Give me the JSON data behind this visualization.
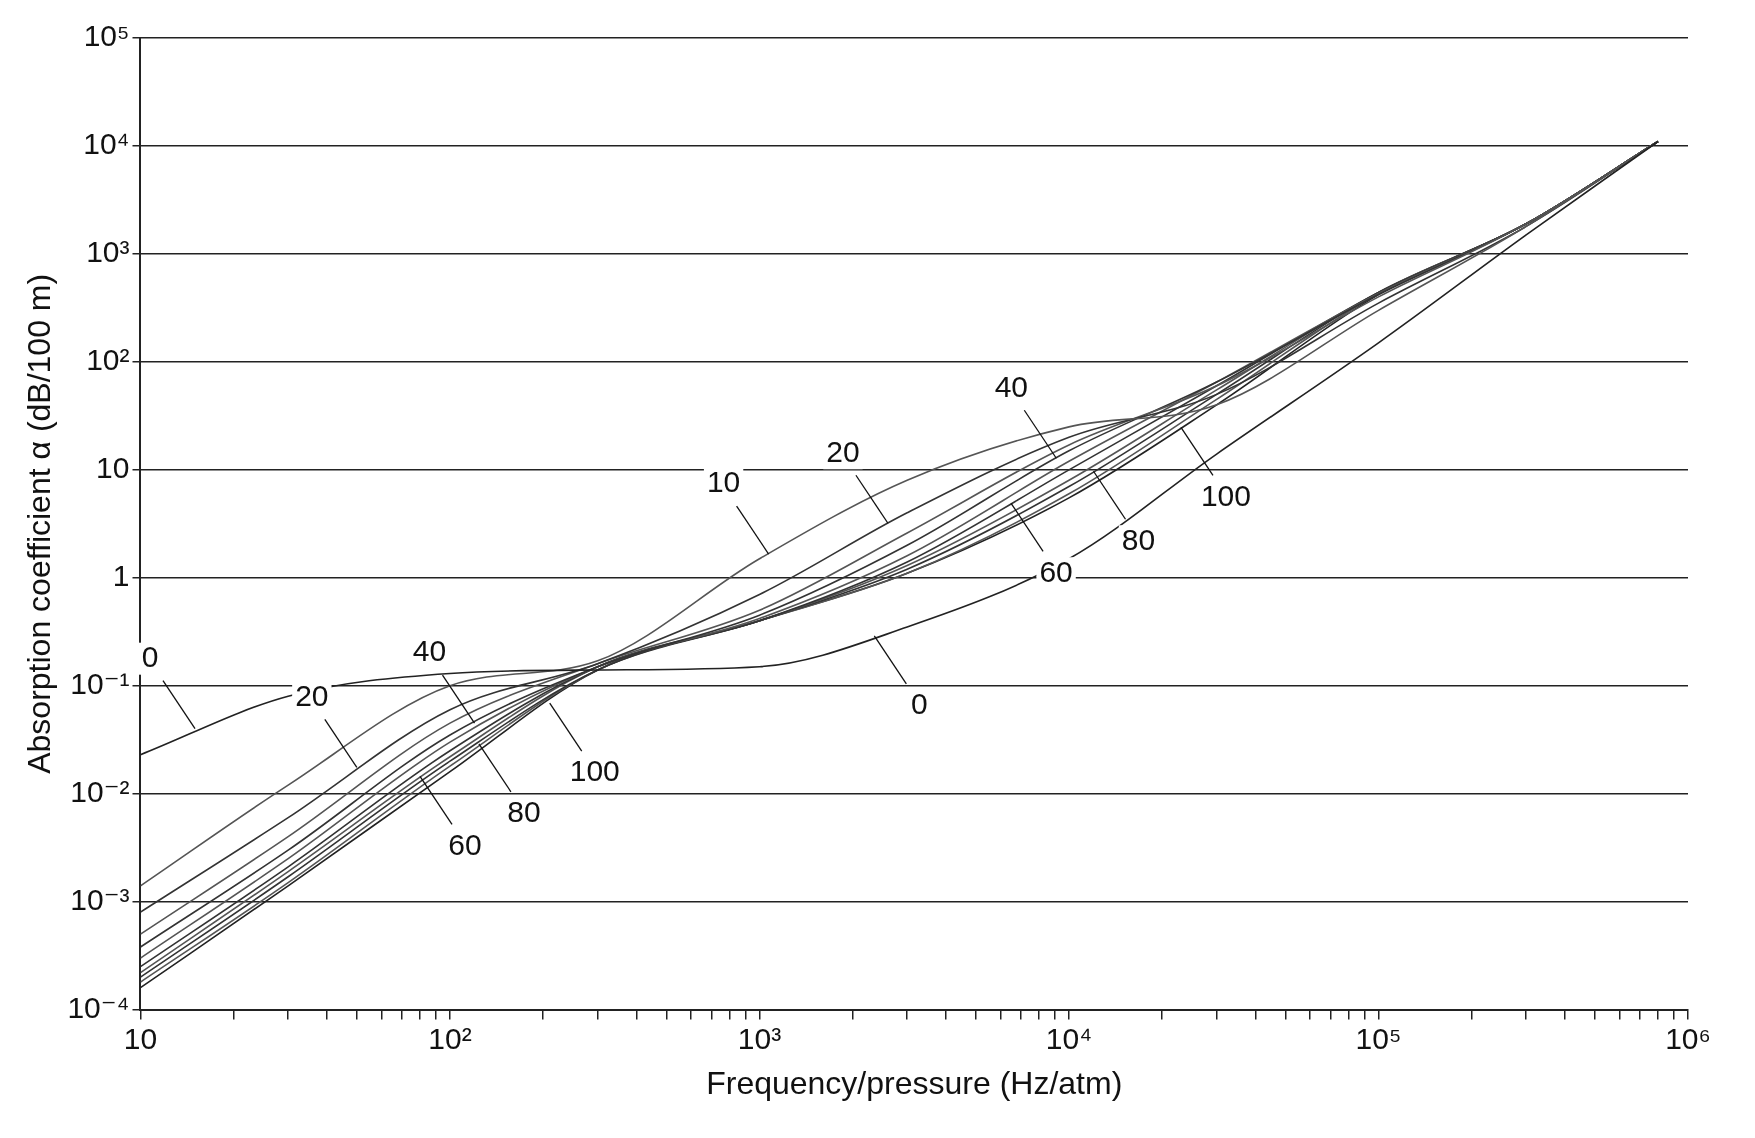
{
  "chart_data": {
    "type": "line",
    "xlabel": "Frequency/pressure (Hz/atm)",
    "ylabel": "Absorption coefficient α (dB/100 m)",
    "log": "xy",
    "grid": "y",
    "legend": false,
    "marker": "none",
    "line_style": "solid",
    "xlim": [
      10,
      1000000
    ],
    "ylim": [
      0.0001,
      100000
    ],
    "xticks": [
      10,
      {
        "value": 20,
        "label": null
      },
      {
        "value": 30,
        "label": null
      },
      {
        "value": 40,
        "label": null
      },
      {
        "value": 50,
        "label": null
      },
      {
        "value": 60,
        "label": null
      },
      {
        "value": 70,
        "label": null
      },
      {
        "value": 80,
        "label": null
      },
      {
        "value": 90,
        "label": null
      },
      {
        "value": 100,
        "label": "10²"
      },
      {
        "value": 200,
        "label": null
      },
      {
        "value": 300,
        "label": null
      },
      {
        "value": 400,
        "label": null
      },
      {
        "value": 500,
        "label": null
      },
      {
        "value": 600,
        "label": null
      },
      {
        "value": 700,
        "label": null
      },
      {
        "value": 800,
        "label": null
      },
      {
        "value": 900,
        "label": null
      },
      {
        "value": 1000,
        "label": "10³"
      },
      {
        "value": 2000,
        "label": null
      },
      {
        "value": 3000,
        "label": null
      },
      {
        "value": 4000,
        "label": null
      },
      {
        "value": 5000,
        "label": null
      },
      {
        "value": 6000,
        "label": null
      },
      {
        "value": 7000,
        "label": null
      },
      {
        "value": 8000,
        "label": null
      },
      {
        "value": 9000,
        "label": null
      },
      {
        "value": 10000,
        "label": "10⁴"
      },
      {
        "value": 20000,
        "label": null
      },
      {
        "value": 30000,
        "label": null
      },
      {
        "value": 40000,
        "label": null
      },
      {
        "value": 50000,
        "label": null
      },
      {
        "value": 60000,
        "label": null
      },
      {
        "value": 70000,
        "label": null
      },
      {
        "value": 80000,
        "label": null
      },
      {
        "value": 90000,
        "label": null
      },
      {
        "value": 100000,
        "label": "10⁵"
      },
      {
        "value": 200000,
        "label": null
      },
      {
        "value": 300000,
        "label": null
      },
      {
        "value": 400000,
        "label": null
      },
      {
        "value": 500000,
        "label": null
      },
      {
        "value": 600000,
        "label": null
      },
      {
        "value": 700000,
        "label": null
      },
      {
        "value": 800000,
        "label": null
      },
      {
        "value": 900000,
        "label": null
      },
      {
        "value": 1000000,
        "label": "10⁶"
      }
    ],
    "yticks": [
      {
        "value": 0.0001,
        "label": "10⁻⁴"
      },
      {
        "value": 0.001,
        "label": "10⁻³"
      },
      {
        "value": 0.01,
        "label": "10⁻²"
      },
      {
        "value": 0.1,
        "label": "10⁻¹"
      },
      1,
      10,
      {
        "value": 100,
        "label": "10²"
      },
      {
        "value": 1000,
        "label": "10³"
      },
      {
        "value": 10000,
        "label": "10⁴"
      },
      {
        "value": 100000,
        "label": "10⁵"
      }
    ],
    "x": [
      10,
      30,
      100,
      300,
      1000,
      3000,
      10000,
      30000,
      100000,
      300000,
      800000
    ],
    "series": [
      {
        "color": "#222222",
        "values": [
          0.023,
          0.08,
          0.13,
          0.14,
          0.15,
          0.35,
          1.5,
          14,
          150,
          1500,
          11000
        ]
      },
      {
        "color": "#555555",
        "values": [
          0.0014,
          0.012,
          0.1,
          0.17,
          1.5,
          8,
          25,
          40,
          300,
          1800,
          11000
        ]
      },
      {
        "color": "#333333",
        "values": [
          0.0008,
          0.006,
          0.06,
          0.16,
          0.7,
          4,
          20,
          50,
          350,
          1800,
          11000
        ]
      },
      {
        "color": "#555555",
        "values": [
          0.0005,
          0.004,
          0.045,
          0.16,
          0.5,
          2.6,
          17,
          60,
          400,
          1900,
          11000
        ]
      },
      {
        "color": "#333333",
        "values": [
          0.00038,
          0.003,
          0.035,
          0.15,
          0.45,
          2,
          15,
          65,
          420,
          1900,
          11000
        ]
      },
      {
        "color": "#555555",
        "values": [
          0.0003,
          0.0025,
          0.03,
          0.15,
          0.42,
          1.6,
          12,
          65,
          430,
          1900,
          11000
        ]
      },
      {
        "color": "#333333",
        "values": [
          0.00025,
          0.0021,
          0.025,
          0.15,
          0.4,
          1.4,
          10,
          60,
          440,
          1900,
          11000
        ]
      },
      {
        "color": "#555555",
        "values": [
          0.00022,
          0.0019,
          0.022,
          0.15,
          0.4,
          1.3,
          8,
          55,
          440,
          1900,
          11000
        ]
      },
      {
        "color": "#333333",
        "values": [
          0.0002,
          0.0017,
          0.02,
          0.14,
          0.4,
          1.2,
          7,
          50,
          440,
          1900,
          11000
        ]
      },
      {
        "color": "#555555",
        "values": [
          0.00018,
          0.0015,
          0.018,
          0.14,
          0.4,
          1.1,
          6,
          45,
          430,
          1900,
          11000
        ]
      },
      {
        "color": "#222222",
        "values": [
          0.00016,
          0.0014,
          0.016,
          0.14,
          0.4,
          1.1,
          5.5,
          40,
          420,
          1900,
          11000
        ]
      }
    ],
    "annotations": [
      {
        "text": "0",
        "x": 15,
        "y": 0.04
      },
      {
        "text": "20",
        "x": 50,
        "y": 0.0175
      },
      {
        "text": "40",
        "x": 120,
        "y": 0.045
      },
      {
        "text": "60",
        "x": 80,
        "y": 0.0145
      },
      {
        "text": "80",
        "x": 124,
        "y": 0.029
      },
      {
        "text": "100",
        "x": 210,
        "y": 0.069
      },
      {
        "text": "0",
        "x": 2350,
        "y": 0.29
      },
      {
        "text": "10",
        "x": 1070,
        "y": 1.66
      },
      {
        "text": "20",
        "x": 2600,
        "y": 3.2
      },
      {
        "text": "40",
        "x": 9100,
        "y": 12.8
      },
      {
        "text": "60",
        "x": 6500,
        "y": 4.9
      },
      {
        "text": "80",
        "x": 12000,
        "y": 9.7
      },
      {
        "text": "100",
        "x": 23000,
        "y": 24.7
      }
    ]
  }
}
